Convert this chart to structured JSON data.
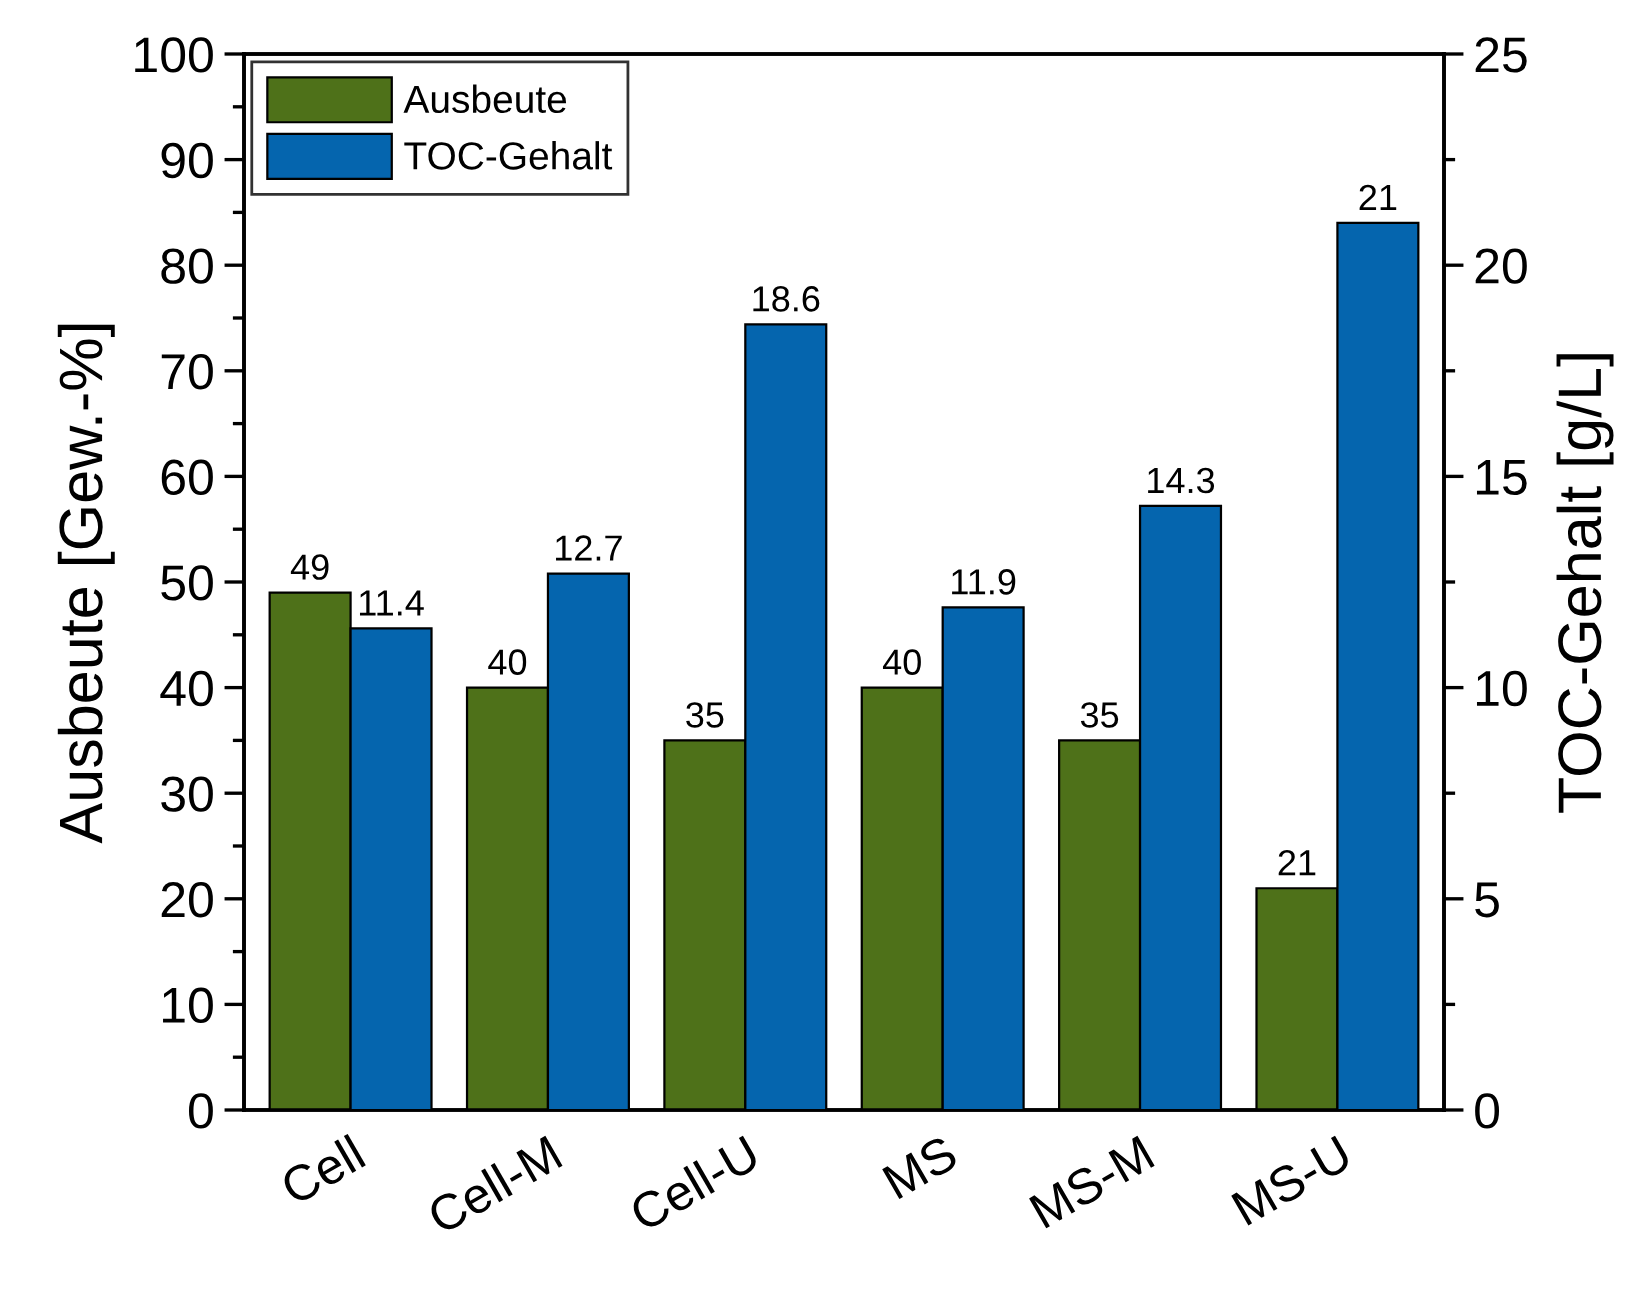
{
  "chart_data": {
    "type": "bar",
    "categories": [
      "Cell",
      "Cell-M",
      "Cell-U",
      "MS",
      "MS-M",
      "MS-U"
    ],
    "ylabel": "Ausbeute [Gew.-%]",
    "y2label": "TOC-Gehalt [g/L]",
    "series": [
      {
        "name": "Ausbeute",
        "color": "#4e7119",
        "values": [
          49,
          40,
          35,
          40,
          35,
          21
        ]
      },
      {
        "name": "TOC-Gehalt",
        "color": "#0565ae",
        "axis": "y2",
        "values": [
          11.4,
          12.7,
          18.6,
          11.9,
          14.3,
          21
        ]
      }
    ],
    "ylim": [
      0,
      100
    ],
    "yticks": [
      0,
      10,
      20,
      30,
      40,
      50,
      60,
      70,
      80,
      90,
      100
    ],
    "y2lim": [
      0,
      25
    ],
    "y2ticks": [
      0,
      5,
      10,
      15,
      20,
      25
    ],
    "data_labels": true,
    "legend": "top left",
    "grid": false
  }
}
